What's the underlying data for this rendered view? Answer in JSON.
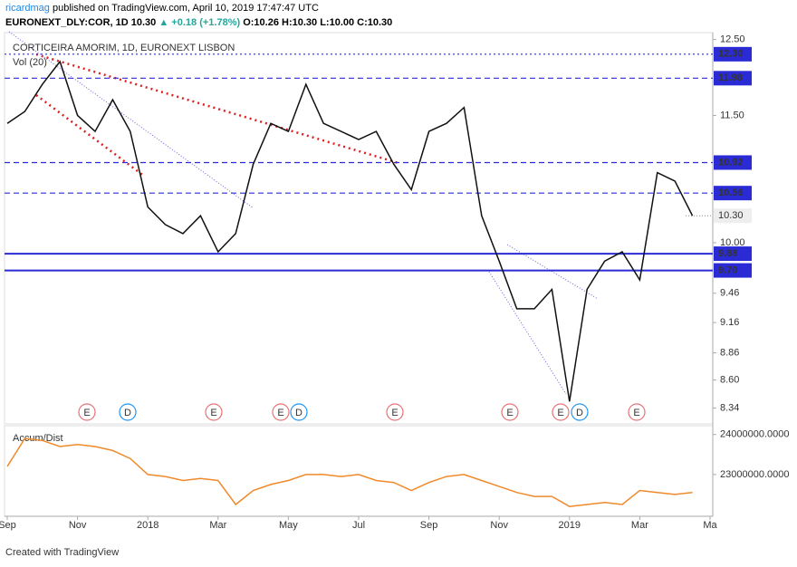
{
  "header": {
    "author": "ricardmag",
    "published": "published on TradingView.com, April 10, 2019 17:47:47 UTC",
    "symbol": "EURONEXT_DLY:COR, 1D",
    "last": "10.30",
    "change": "▲ +0.18 (+1.78%)",
    "ohlc": "O:10.26 H:10.30 L:10.00 C:10.30"
  },
  "footer": "Created with TradingView",
  "events": [
    "E",
    "D",
    "E",
    "E",
    "D",
    "E",
    "E",
    "E",
    "D",
    "E"
  ],
  "chart_data": [
    {
      "type": "line",
      "title": "CORTICEIRA AMORIM, 1D, EURONEXT LISBON",
      "subtitle": "Vol (20)",
      "log_scale": true,
      "categories": [
        "Sep",
        null,
        null,
        null,
        "Nov",
        null,
        null,
        null,
        "2018",
        null,
        null,
        null,
        "Mar",
        null,
        null,
        null,
        "May",
        null,
        null,
        null,
        "Jul",
        null,
        null,
        null,
        "Sep",
        null,
        null,
        null,
        "Nov",
        null,
        null,
        null,
        "2019",
        null,
        null,
        null,
        "Mar",
        null,
        null,
        null,
        "Ma"
      ],
      "series": [
        {
          "name": "COR",
          "color": "#111111",
          "values": [
            11.4,
            11.55,
            11.9,
            12.2,
            11.5,
            11.3,
            11.7,
            11.3,
            10.4,
            10.2,
            10.1,
            10.3,
            9.9,
            10.1,
            10.9,
            11.4,
            11.3,
            11.9,
            11.4,
            11.3,
            11.2,
            11.3,
            10.9,
            10.6,
            11.3,
            11.4,
            11.6,
            10.3,
            9.8,
            9.3,
            9.3,
            9.5,
            8.4,
            9.5,
            9.8,
            9.9,
            9.6,
            10.8,
            10.7,
            10.3,
            null
          ]
        }
      ],
      "ylim": [
        8.22,
        12.57
      ],
      "yticks": [
        {
          "value": 12.5,
          "label": "12.50"
        },
        {
          "value": 11.5,
          "label": "11.50"
        },
        {
          "value": 10,
          "label": "10.00"
        },
        9.46,
        9.16,
        8.86,
        {
          "value": 8.6,
          "label": "8.60"
        },
        8.34
      ],
      "levels": [
        {
          "value": 12.3,
          "label": "12.30",
          "style": "dotted",
          "color": "#2b2bd6"
        },
        {
          "value": 11.98,
          "label": "11.98",
          "style": "dashed",
          "color": "#2b2bd6"
        },
        {
          "value": 10.92,
          "label": "10.92",
          "style": "dashed",
          "color": "#2b2bd6"
        },
        {
          "value": 10.56,
          "label": "10.56",
          "style": "dashed",
          "color": "#2b2bd6"
        },
        {
          "value": 9.88,
          "label": "9.88",
          "style": "solid",
          "color": "#2b2bd6"
        },
        {
          "value": 9.7,
          "label": "9.70",
          "style": "solid",
          "color": "#2b2bd6"
        }
      ],
      "current_price": {
        "value": 10.3,
        "label": "10.30"
      }
    },
    {
      "type": "line",
      "title": "Accum/Dist",
      "series": [
        {
          "name": "Accum/Dist",
          "color": "#ef8a2c",
          "values": [
            23200000,
            23900000,
            23850000,
            23700000,
            23750000,
            23700000,
            23600000,
            23400000,
            23000000,
            22950000,
            22850000,
            22900000,
            22850000,
            22250000,
            22600000,
            22750000,
            22850000,
            23000000,
            23000000,
            22950000,
            23000000,
            22850000,
            22800000,
            22600000,
            22800000,
            22950000,
            23000000,
            22850000,
            22700000,
            22550000,
            22450000,
            22450000,
            22200000,
            22250000,
            22300000,
            22250000,
            22600000,
            22550000,
            22500000,
            22550000,
            null
          ]
        }
      ],
      "ylim": [
        22000000,
        24220000
      ],
      "yticks": [
        {
          "value": 24000000,
          "label": "24000000.0000"
        },
        {
          "value": 23000000,
          "label": "23000000.0000"
        }
      ]
    }
  ]
}
